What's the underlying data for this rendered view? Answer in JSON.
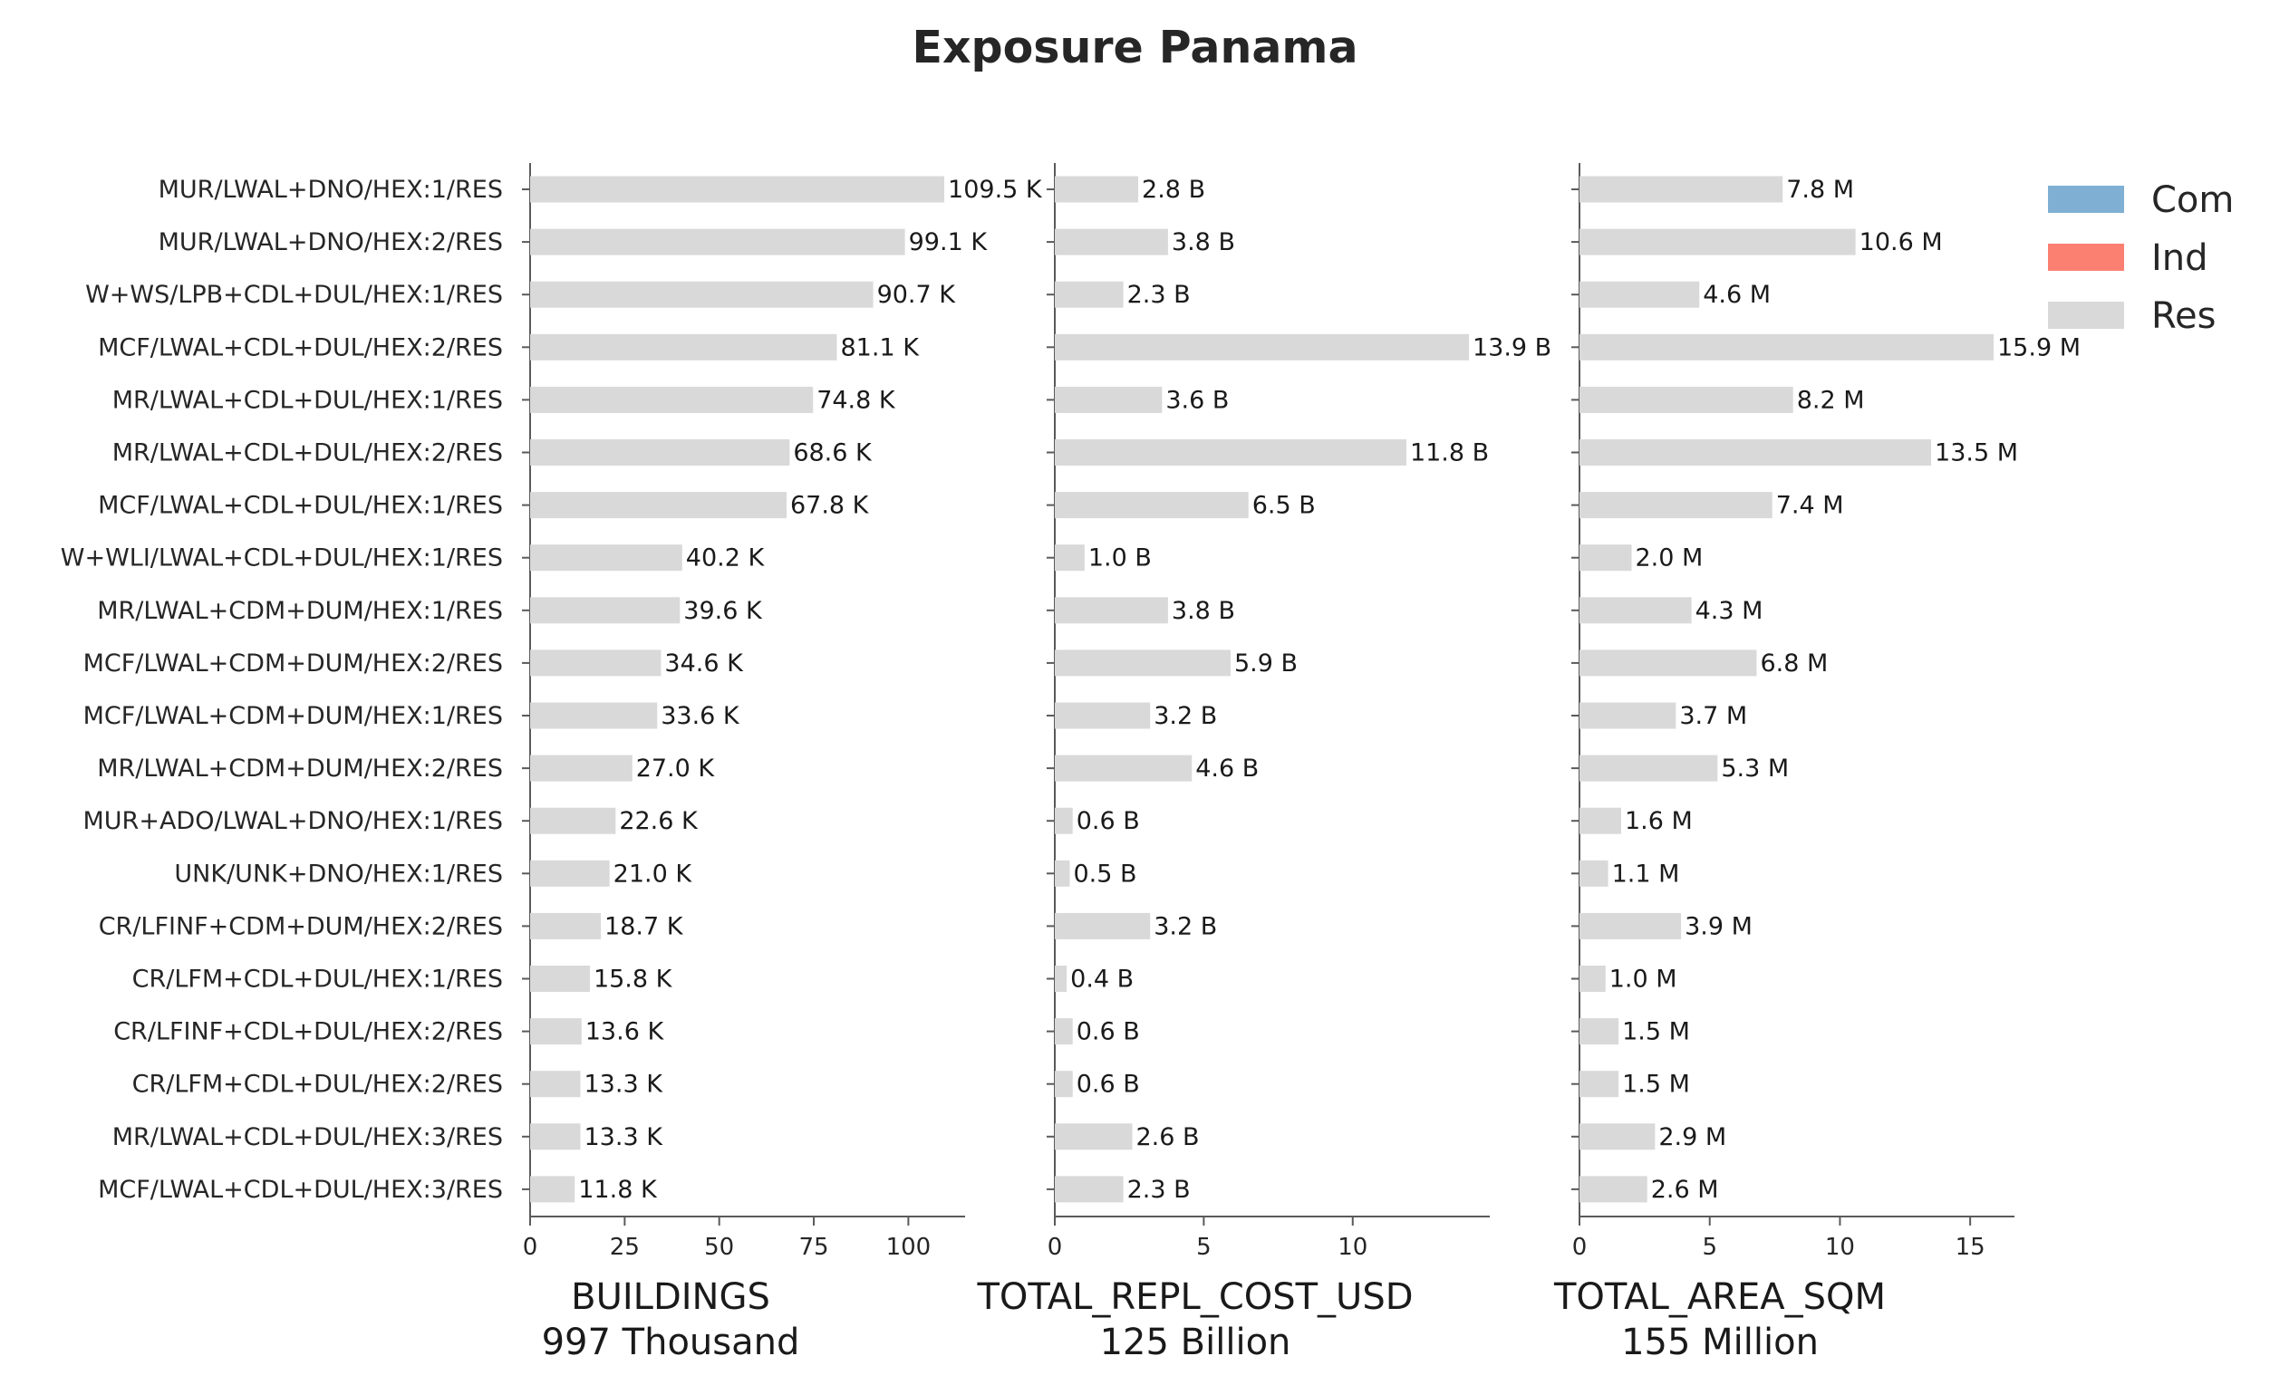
{
  "chart_data": {
    "type": "bar",
    "orientation": "horizontal",
    "title": "Exposure Panama",
    "categories": [
      "MUR/LWAL+DNO/HEX:1/RES",
      "MUR/LWAL+DNO/HEX:2/RES",
      "W+WS/LPB+CDL+DUL/HEX:1/RES",
      "MCF/LWAL+CDL+DUL/HEX:2/RES",
      "MR/LWAL+CDL+DUL/HEX:1/RES",
      "MR/LWAL+CDL+DUL/HEX:2/RES",
      "MCF/LWAL+CDL+DUL/HEX:1/RES",
      "W+WLI/LWAL+CDL+DUL/HEX:1/RES",
      "MR/LWAL+CDM+DUM/HEX:1/RES",
      "MCF/LWAL+CDM+DUM/HEX:2/RES",
      "MCF/LWAL+CDM+DUM/HEX:1/RES",
      "MR/LWAL+CDM+DUM/HEX:2/RES",
      "MUR+ADO/LWAL+DNO/HEX:1/RES",
      "UNK/UNK+DNO/HEX:1/RES",
      "CR/LFINF+CDM+DUM/HEX:2/RES",
      "CR/LFM+CDL+DUL/HEX:1/RES",
      "CR/LFINF+CDL+DUL/HEX:2/RES",
      "CR/LFM+CDL+DUL/HEX:2/RES",
      "MR/LWAL+CDL+DUL/HEX:3/RES",
      "MCF/LWAL+CDL+DUL/HEX:3/RES"
    ],
    "panels": [
      {
        "name": "buildings",
        "xlabel": "BUILDINGS",
        "xlabel_sub": "997 Thousand",
        "xlim": [
          0,
          115
        ],
        "xticks": [
          0,
          25,
          50,
          75,
          100
        ],
        "series": [
          {
            "name": "Res",
            "values": [
              109.5,
              99.1,
              90.7,
              81.1,
              74.8,
              68.6,
              67.8,
              40.2,
              39.6,
              34.6,
              33.6,
              27.0,
              22.6,
              21.0,
              18.7,
              15.8,
              13.6,
              13.3,
              13.3,
              11.8
            ]
          }
        ],
        "value_labels": [
          "109.5 K",
          "99.1 K",
          "90.7 K",
          "81.1 K",
          "74.8 K",
          "68.6 K",
          "67.8 K",
          "40.2 K",
          "39.6 K",
          "34.6 K",
          "33.6 K",
          "27.0 K",
          "22.6 K",
          "21.0 K",
          "18.7 K",
          "15.8 K",
          "13.6 K",
          "13.3 K",
          "13.3 K",
          "11.8 K"
        ]
      },
      {
        "name": "repl-cost",
        "xlabel": "TOTAL_REPL_COST_USD",
        "xlabel_sub": "125 Billion",
        "xlim": [
          0,
          14.6
        ],
        "xticks": [
          0,
          5,
          10
        ],
        "series": [
          {
            "name": "Res",
            "values": [
              2.8,
              3.8,
              2.3,
              13.9,
              3.6,
              11.8,
              6.5,
              1.0,
              3.8,
              5.9,
              3.2,
              4.6,
              0.6,
              0.5,
              3.2,
              0.4,
              0.6,
              0.6,
              2.6,
              2.3
            ]
          }
        ],
        "value_labels": [
          "2.8 B",
          "3.8 B",
          "2.3 B",
          "13.9 B",
          "3.6 B",
          "11.8 B",
          "6.5 B",
          "1.0 B",
          "3.8 B",
          "5.9 B",
          "3.2 B",
          "4.6 B",
          "0.6 B",
          "0.5 B",
          "3.2 B",
          "0.4 B",
          "0.6 B",
          "0.6 B",
          "2.6 B",
          "2.3 B"
        ]
      },
      {
        "name": "area",
        "xlabel": "TOTAL_AREA_SQM",
        "xlabel_sub": "155 Million",
        "xlim": [
          0,
          16.7
        ],
        "xticks": [
          0,
          5,
          10,
          15
        ],
        "series": [
          {
            "name": "Res",
            "values": [
              7.8,
              10.6,
              4.6,
              15.9,
              8.2,
              13.5,
              7.4,
              2.0,
              4.3,
              6.8,
              3.7,
              5.3,
              1.6,
              1.1,
              3.9,
              1.0,
              1.5,
              1.5,
              2.9,
              2.6
            ]
          }
        ],
        "value_labels": [
          "7.8 M",
          "10.6 M",
          "4.6 M",
          "15.9 M",
          "8.2 M",
          "13.5 M",
          "7.4 M",
          "2.0 M",
          "4.3 M",
          "6.8 M",
          "3.7 M",
          "5.3 M",
          "1.6 M",
          "1.1 M",
          "3.9 M",
          "1.0 M",
          "1.5 M",
          "1.5 M",
          "2.9 M",
          "2.6 M"
        ]
      }
    ],
    "legend": {
      "placement": "top-right",
      "items": [
        {
          "label": "Com",
          "color": "#7fb0d4"
        },
        {
          "label": "Ind",
          "color": "#fb8072"
        },
        {
          "label": "Res",
          "color": "#d9d9d9"
        }
      ]
    },
    "bar_color": "#d9d9d9",
    "grid": false
  }
}
